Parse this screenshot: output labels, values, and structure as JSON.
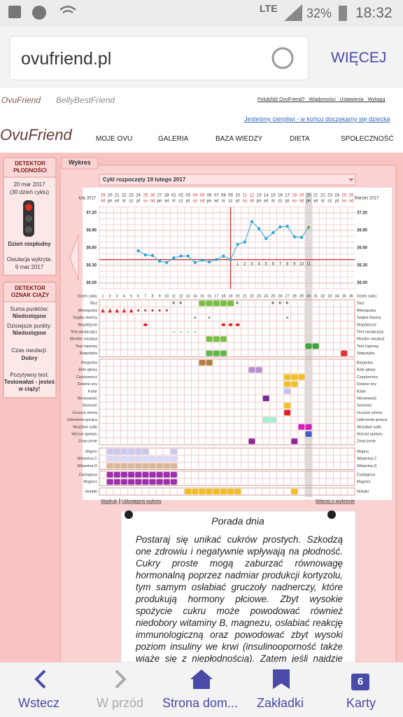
{
  "status_bar": {
    "network": "LTE",
    "battery": "32%",
    "time": "18:32"
  },
  "browser": {
    "url": "ovufriend.pl",
    "menu": "WIĘCEJ"
  },
  "site": {
    "logo_small": "OvuFriend",
    "logo_belly": "BellyBestFriend",
    "top_links": [
      "Polub/Idź OvuFriend?",
      "Wiadomości",
      "Ustawienia",
      "Wyloguj"
    ],
    "motto": "Jesteśmy cierpliwi - w końcu doczekamy się dziecka",
    "logo": "OvuFriend",
    "nav": [
      "MOJE OVU",
      "GALERIA",
      "BAZA WIEDZY",
      "DIETA",
      "SPOŁECZNOŚĆ"
    ]
  },
  "sidebar": {
    "fertility": {
      "title": "DETEKTOR PŁODNOŚCI",
      "date": "20 mar 2017",
      "cycle_day": "(30 dzień cyklu)",
      "status": "Dzień niepłodny",
      "ovulation_label": "Owulacja wykryta:",
      "ovulation_date": "9 mar 2017"
    },
    "pregnancy": {
      "title": "DETEKTOR OZNAK CIĄŻY",
      "items": [
        {
          "label": "Suma punktów:",
          "value": "Niedostępne"
        },
        {
          "label": "Dzisiejsze punkty:",
          "value": "Niedostępne"
        },
        {
          "label": "Czas owulacji:",
          "value": "Dobry"
        },
        {
          "label": "Pozytywny test:",
          "value": "Testowałaś - jesteś w ciąży!"
        }
      ]
    }
  },
  "chart": {
    "tab": "Wykres",
    "cycle_select": "Cykl rozpoczęty 19 lutego 2017",
    "month_left": "luty 2017",
    "month_right": "Marzec 2017",
    "dates": [
      "19",
      "20",
      "21",
      "22",
      "23",
      "24",
      "25",
      "26",
      "27",
      "28",
      "01",
      "02",
      "03",
      "04",
      "05",
      "06",
      "07",
      "08",
      "09",
      "10",
      "11",
      "12",
      "13",
      "14",
      "15",
      "16",
      "17",
      "18",
      "19",
      "20",
      "21",
      "22",
      "23",
      "24",
      "25",
      "26"
    ],
    "weekdays": [
      "nd",
      "pn",
      "wt",
      "śr",
      "cz",
      "pt",
      "so",
      "nd",
      "pn",
      "wt",
      "śr",
      "cz",
      "pt",
      "so",
      "nd",
      "pn",
      "wt",
      "śr",
      "cz",
      "pt",
      "so",
      "nd",
      "pn",
      "wt",
      "śr",
      "cz",
      "pt",
      "so",
      "nd",
      "pn",
      "wt",
      "śr",
      "cz",
      "pt",
      "so",
      "nd"
    ],
    "ylim": [
      35.9,
      37.3
    ],
    "yticks": [
      {
        "value": 37.2,
        "label": "37.20"
      },
      {
        "value": 36.9,
        "label": "36.90"
      },
      {
        "value": 36.6,
        "label": "36.60"
      },
      {
        "value": 36.3,
        "label": "36.30"
      },
      {
        "value": 36.0,
        "label": "36.00"
      }
    ],
    "temperature": {
      "days": [
        6,
        7,
        8,
        9,
        10,
        11,
        12,
        13,
        14,
        15,
        16,
        17,
        18,
        19,
        20,
        21,
        22,
        23,
        24,
        25,
        26,
        27,
        28,
        29,
        30
      ],
      "values": [
        36.55,
        36.48,
        36.47,
        36.37,
        36.35,
        36.43,
        36.46,
        36.46,
        36.35,
        36.39,
        36.36,
        36.4,
        36.46,
        36.4,
        36.66,
        36.7,
        37.05,
        36.93,
        36.76,
        36.86,
        36.96,
        36.97,
        36.79,
        36.78,
        36.95
      ]
    },
    "coverline": 36.4,
    "ovulation_day": 19,
    "today": 30,
    "post_ovulation_days": [
      1,
      2,
      3,
      4,
      5,
      6,
      7,
      8,
      9,
      10,
      11
    ],
    "cycle_day_label": "Dzień cyklu",
    "cycle_days": [
      1,
      2,
      3,
      4,
      5,
      6,
      7,
      8,
      9,
      10,
      11,
      12,
      13,
      14,
      15,
      16,
      17,
      18,
      19,
      20,
      21,
      22,
      23,
      24,
      25,
      26,
      27,
      28,
      29,
      30,
      31,
      32,
      33,
      34,
      35,
      36
    ],
    "row_groups": [
      [
        {
          "label": "Śluz",
          "text_marks": {
            "label": "K",
            "days": [
              11,
              12,
              20,
              25,
              26,
              27
            ]
          },
          "marks": [
            {
              "color": "#74c043",
              "days": [
                15,
                16,
                17,
                18,
                19
              ]
            }
          ]
        },
        {
          "label": "Miesiączka",
          "marks": [
            {
              "color": "#e03030",
              "shape": "triangle",
              "days": [
                1,
                2,
                3,
                4,
                5
              ]
            },
            {
              "color": "#c04040",
              "shape": "dot",
              "days": [
                6,
                7,
                8,
                9,
                10
              ]
            }
          ]
        },
        {
          "label": "Szyjka macicy",
          "marks": [
            {
              "color": "#999999",
              "shape": "dot",
              "days": [
                14,
                16,
                27
              ]
            }
          ]
        },
        {
          "label": "Współżycie",
          "marks": [
            {
              "color": "#e02020",
              "shape": "heart",
              "days": [
                7,
                18,
                19,
                20
              ]
            }
          ]
        },
        {
          "label": "Test owulacyjny",
          "marks": [
            {
              "color": "#999999",
              "shape": "dash",
              "days": [
                11,
                12,
                13,
                14
              ]
            }
          ]
        },
        {
          "label": "Monitor owulacji",
          "marks": [
            {
              "color": "#74c043",
              "days": [
                16,
                17,
                18
              ]
            }
          ]
        },
        {
          "label": "Test ciążowy",
          "marks": [
            {
              "color": "#3aa83a",
              "days": [
                30,
                31
              ]
            }
          ]
        },
        {
          "label": "Statystyka",
          "marks": [
            {
              "color": "#5cb84a",
              "days": [
                16,
                17,
                18
              ]
            },
            {
              "color": "#e03030",
              "days": [
                35
              ]
            }
          ]
        }
      ],
      [
        {
          "label": "Biegunka",
          "marks": [
            {
              "color": "#b08040",
              "days": [
                15,
                16
              ]
            }
          ]
        },
        {
          "label": "Bóle głowy",
          "marks": [
            {
              "color": "#b890d0",
              "days": [
                22,
                23
              ]
            }
          ]
        },
        {
          "label": "Częstomocz",
          "marks": [
            {
              "color": "#f0c020",
              "days": [
                27,
                28,
                29
              ]
            }
          ]
        },
        {
          "label": "Dziwne sny",
          "marks": [
            {
              "color": "#f0c020",
              "days": [
                27,
                28
              ]
            }
          ]
        },
        {
          "label": "Katar",
          "marks": [
            {
              "color": "#c8c0f0",
              "days": [
                27
              ]
            }
          ]
        },
        {
          "label": "Nerwowość",
          "marks": [
            {
              "color": "#7a2a9a",
              "days": [
                24
              ]
            }
          ]
        },
        {
          "label": "Senność",
          "marks": [
            {
              "color": "#f0c020",
              "days": [
                27
              ]
            }
          ]
        },
        {
          "label": "Uczucie zimna",
          "marks": [
            {
              "color": "#e02020",
              "days": [
                27
              ]
            }
          ]
        },
        {
          "label": "Uderzenia gorąca",
          "marks": [
            {
              "color": "#a0f0d0",
              "days": [
                24,
                25
              ]
            }
          ]
        },
        {
          "label": "Wrażliwe sutki",
          "marks": [
            {
              "color": "#d020c0",
              "days": [
                29,
                30
              ]
            }
          ]
        },
        {
          "label": "Wzrost apetytu",
          "marks": [
            {
              "color": "#4060c0",
              "days": [
                30
              ]
            }
          ]
        },
        {
          "label": "Zmęczenie",
          "marks": [
            {
              "color": "#8a2a9a",
              "days": [
                22,
                28
              ]
            }
          ]
        }
      ],
      [
        {
          "label": "Wapno",
          "marks": [
            {
              "color": "#c8c8f0",
              "days": [
                2,
                3,
                4,
                5,
                6,
                7,
                11
              ]
            }
          ]
        },
        {
          "label": "Witamina C",
          "marks": [
            {
              "color": "#d8d8f8",
              "days": [
                2,
                3,
                4,
                5,
                6,
                7,
                8,
                9,
                10,
                11
              ]
            }
          ]
        },
        {
          "label": "Witamina D",
          "marks": [
            {
              "color": "#d8b898",
              "days": [
                2,
                3,
                4,
                5,
                6,
                7,
                8,
                9,
                10,
                11
              ]
            }
          ]
        }
      ],
      [
        {
          "label": "Castagnus",
          "marks": [
            {
              "color": "#9a30b0",
              "days": [
                2,
                3,
                4,
                5,
                6,
                7,
                8,
                9,
                10,
                11
              ]
            }
          ]
        },
        {
          "label": "Magnez",
          "marks": [
            {
              "color": "#9a30b0",
              "days": [
                2,
                3,
                4,
                5,
                6,
                7,
                8,
                9,
                10,
                11
              ]
            }
          ]
        }
      ],
      [
        {
          "label": "Notatki",
          "marks": [
            {
              "color": "#f0c020",
              "days": [
                13,
                14,
                15,
                16,
                17,
                18,
                19,
                20,
                28
              ]
            }
          ]
        }
      ]
    ],
    "links": {
      "left": [
        "Wydruk",
        "Udostępnij wykres"
      ],
      "right": "Więcej o wykresie"
    }
  },
  "tip": {
    "title": "Porada dnia",
    "text": "Postaraj się unikać cukrów prostych. Szkodzą one zdrowiu i negatywnie wpływają na płodność. Cukry proste mogą zaburzać równowagę hormonalną poprzez nadmiar produkcji kortyzolu, tym samym osłabiać gruczoły nadnerczy, które produkują hormony płciowe. Zbyt wysokie spożycie cukru może powodować również niedobory witaminy B, magnezu, osłabiać reakcję immunologiczną oraz powodować zbyt wysoki poziom insuliny we krwi (insulinooporność także wiąże się z niepłodnością). Zatem jeśli najdzie Cię ochota"
  },
  "bottom_nav": {
    "items": [
      "Wstecz",
      "W przód",
      "Strona dom...",
      "Zakładki",
      "Karty"
    ],
    "tabs_count": 6
  }
}
